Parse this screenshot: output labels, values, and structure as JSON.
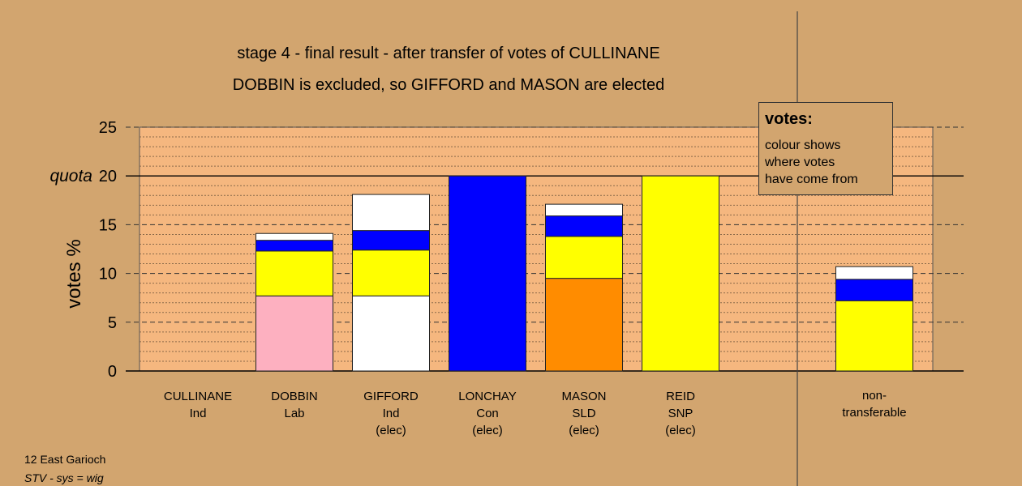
{
  "title_line1": "stage 4 - final result - after transfer of votes of CULLINANE",
  "title_line2": "DOBBIN is excluded, so GIFFORD and MASON are elected",
  "legend": {
    "title": "votes:",
    "lines": [
      "colour shows",
      "where votes",
      "have come from"
    ]
  },
  "footer": {
    "line1": "12 East Garioch",
    "line2": "STV - sys = wig"
  },
  "colors": {
    "background": "#d2a56f",
    "plot_area": "#f5b77f",
    "pink": "#fdb0c0",
    "yellow": "#ffff00",
    "blue": "#0000ff",
    "white": "#ffffff",
    "orange": "#ff8c00"
  },
  "chart_data": {
    "type": "bar",
    "stacked": true,
    "ylabel": "votes %",
    "ylim": [
      0,
      25
    ],
    "yticks": [
      0,
      5,
      10,
      15,
      20,
      25
    ],
    "quota": {
      "label": "quota",
      "value": 20
    },
    "categories": [
      {
        "name": "CULLINANE",
        "party": "Ind",
        "status": ""
      },
      {
        "name": "DOBBIN",
        "party": "Lab",
        "status": ""
      },
      {
        "name": "GIFFORD",
        "party": "Ind",
        "status": "(elec)"
      },
      {
        "name": "LONCHAY",
        "party": "Con",
        "status": "(elec)"
      },
      {
        "name": "MASON",
        "party": "SLD",
        "status": "(elec)"
      },
      {
        "name": "REID",
        "party": "SNP",
        "status": "(elec)"
      },
      {
        "name": "non-",
        "party": "transferable",
        "status": ""
      }
    ],
    "bars": [
      [],
      [
        {
          "value": 7.7,
          "color": "#fdb0c0"
        },
        {
          "value": 4.6,
          "color": "#ffff00"
        },
        {
          "value": 1.1,
          "color": "#0000ff"
        },
        {
          "value": 0.7,
          "color": "#ffffff"
        }
      ],
      [
        {
          "value": 7.7,
          "color": "#ffffff"
        },
        {
          "value": 4.7,
          "color": "#ffff00"
        },
        {
          "value": 2.0,
          "color": "#0000ff"
        },
        {
          "value": 3.7,
          "color": "#ffffff"
        }
      ],
      [
        {
          "value": 20.0,
          "color": "#0000ff"
        }
      ],
      [
        {
          "value": 9.5,
          "color": "#ff8c00"
        },
        {
          "value": 4.3,
          "color": "#ffff00"
        },
        {
          "value": 2.1,
          "color": "#0000ff"
        },
        {
          "value": 1.2,
          "color": "#ffffff"
        }
      ],
      [
        {
          "value": 20.0,
          "color": "#ffff00"
        }
      ],
      [
        {
          "value": 7.2,
          "color": "#ffff00"
        },
        {
          "value": 2.2,
          "color": "#0000ff"
        },
        {
          "value": 1.3,
          "color": "#ffffff"
        }
      ]
    ],
    "grid": true
  }
}
